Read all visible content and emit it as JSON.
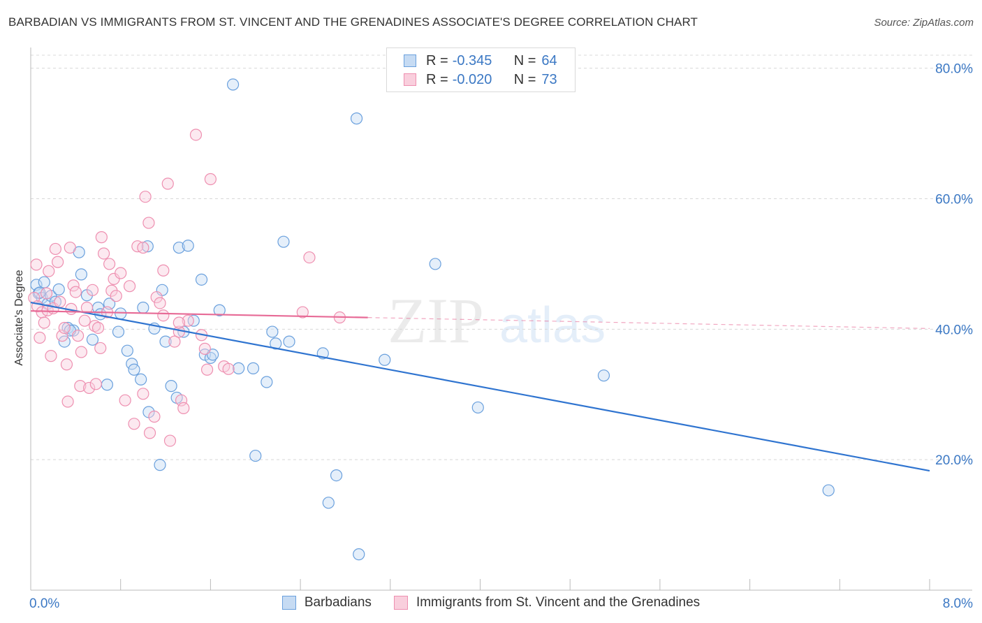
{
  "title": "BARBADIAN VS IMMIGRANTS FROM ST. VINCENT AND THE GRENADINES ASSOCIATE'S DEGREE CORRELATION CHART",
  "source": "Source: ZipAtlas.com",
  "watermark": {
    "zip": "ZIP",
    "atlas": "atlas"
  },
  "stats": [
    {
      "r_label": "R =",
      "r_value": "-0.345",
      "n_label": "N =",
      "n_value": "64",
      "color": "#6aa0dd",
      "fill": "#c6dbf3"
    },
    {
      "r_label": "R =",
      "r_value": "-0.020",
      "n_label": "N =",
      "n_value": "73",
      "color": "#ee8fb0",
      "fill": "#f9cfdd"
    }
  ],
  "legend": [
    {
      "label": "Barbadians",
      "color": "#6aa0dd",
      "fill": "#c6dbf3"
    },
    {
      "label": "Immigrants from St. Vincent and the Grenadines",
      "color": "#ee8fb0",
      "fill": "#f9cfdd"
    }
  ],
  "chart_data": {
    "type": "scatter",
    "title": "BARBADIAN VS IMMIGRANTS FROM ST. VINCENT AND THE GRENADINES ASSOCIATE'S DEGREE CORRELATION CHART",
    "ylabel": "Associate's Degree",
    "xlabel": "",
    "xlim": [
      0,
      8
    ],
    "ylim": [
      0,
      82
    ],
    "x_tick_labels": [
      "0.0%",
      "8.0%"
    ],
    "y_ticks": [
      20,
      40,
      60,
      80
    ],
    "y_tick_labels": [
      "20.0%",
      "40.0%",
      "60.0%",
      "80.0%"
    ],
    "grid": true,
    "legend_position": "bottom",
    "series": [
      {
        "name": "Barbadians",
        "color": "#6aa0dd",
        "fill": "#c6dbf3",
        "trend": {
          "x0": 0,
          "y0": 44.1,
          "x1": 8,
          "y1": 18.3,
          "solid_to": 8
        },
        "points": [
          [
            0.05,
            46.8
          ],
          [
            0.07,
            45.5
          ],
          [
            0.1,
            44.8
          ],
          [
            0.12,
            47.2
          ],
          [
            0.15,
            43.9
          ],
          [
            0.18,
            45.1
          ],
          [
            0.22,
            44.2
          ],
          [
            0.25,
            46.1
          ],
          [
            0.3,
            38.1
          ],
          [
            0.33,
            40.2
          ],
          [
            0.38,
            39.8
          ],
          [
            0.43,
            51.8
          ],
          [
            0.45,
            48.4
          ],
          [
            0.5,
            45.2
          ],
          [
            0.55,
            38.4
          ],
          [
            0.6,
            43.3
          ],
          [
            0.62,
            42.3
          ],
          [
            0.68,
            31.5
          ],
          [
            0.7,
            43.9
          ],
          [
            0.78,
            39.6
          ],
          [
            0.8,
            42.4
          ],
          [
            0.86,
            36.7
          ],
          [
            0.9,
            34.7
          ],
          [
            0.92,
            33.8
          ],
          [
            0.98,
            32.3
          ],
          [
            1.0,
            43.3
          ],
          [
            1.04,
            52.7
          ],
          [
            1.05,
            27.3
          ],
          [
            1.1,
            40.1
          ],
          [
            1.15,
            19.2
          ],
          [
            1.17,
            46.0
          ],
          [
            1.2,
            38.1
          ],
          [
            1.25,
            31.3
          ],
          [
            1.3,
            29.5
          ],
          [
            1.32,
            52.5
          ],
          [
            1.36,
            39.6
          ],
          [
            1.4,
            52.8
          ],
          [
            1.45,
            41.3
          ],
          [
            1.52,
            47.6
          ],
          [
            1.55,
            36.1
          ],
          [
            1.6,
            35.6
          ],
          [
            1.62,
            36.1
          ],
          [
            1.68,
            42.9
          ],
          [
            1.8,
            77.5
          ],
          [
            1.85,
            34.0
          ],
          [
            1.98,
            34.0
          ],
          [
            2.0,
            20.6
          ],
          [
            2.1,
            31.9
          ],
          [
            2.15,
            39.6
          ],
          [
            2.18,
            37.8
          ],
          [
            2.25,
            53.4
          ],
          [
            2.3,
            38.1
          ],
          [
            2.6,
            36.3
          ],
          [
            2.65,
            13.4
          ],
          [
            2.72,
            17.6
          ],
          [
            2.9,
            72.3
          ],
          [
            2.92,
            5.5
          ],
          [
            3.15,
            35.3
          ],
          [
            3.6,
            50.0
          ],
          [
            3.98,
            28.0
          ],
          [
            5.1,
            32.9
          ],
          [
            7.1,
            15.3
          ],
          [
            0.08,
            45.6
          ],
          [
            0.35,
            39.8
          ]
        ]
      },
      {
        "name": "Immigrants from St. Vincent and the Grenadines",
        "color": "#ee8fb0",
        "fill": "#f9cfdd",
        "trend": {
          "x0": 0,
          "y0": 42.8,
          "x1": 8,
          "y1": 40.1,
          "solid_to": 3.0
        },
        "points": [
          [
            0.03,
            44.8
          ],
          [
            0.05,
            49.9
          ],
          [
            0.06,
            43.5
          ],
          [
            0.08,
            38.7
          ],
          [
            0.1,
            42.6
          ],
          [
            0.12,
            41.0
          ],
          [
            0.14,
            45.5
          ],
          [
            0.15,
            42.9
          ],
          [
            0.16,
            48.9
          ],
          [
            0.18,
            35.9
          ],
          [
            0.2,
            43.2
          ],
          [
            0.22,
            52.3
          ],
          [
            0.24,
            50.3
          ],
          [
            0.26,
            44.2
          ],
          [
            0.28,
            39.0
          ],
          [
            0.3,
            40.2
          ],
          [
            0.32,
            34.6
          ],
          [
            0.33,
            28.9
          ],
          [
            0.35,
            52.5
          ],
          [
            0.38,
            46.7
          ],
          [
            0.4,
            45.7
          ],
          [
            0.42,
            39.0
          ],
          [
            0.44,
            31.3
          ],
          [
            0.45,
            36.5
          ],
          [
            0.48,
            41.3
          ],
          [
            0.5,
            43.3
          ],
          [
            0.52,
            31.0
          ],
          [
            0.55,
            46.0
          ],
          [
            0.57,
            40.5
          ],
          [
            0.58,
            31.6
          ],
          [
            0.6,
            40.2
          ],
          [
            0.62,
            37.1
          ],
          [
            0.63,
            54.1
          ],
          [
            0.65,
            51.6
          ],
          [
            0.68,
            42.6
          ],
          [
            0.7,
            50.0
          ],
          [
            0.72,
            45.9
          ],
          [
            0.74,
            47.7
          ],
          [
            0.76,
            45.1
          ],
          [
            0.8,
            48.6
          ],
          [
            0.84,
            29.1
          ],
          [
            0.88,
            46.6
          ],
          [
            0.92,
            25.5
          ],
          [
            0.95,
            52.7
          ],
          [
            1.0,
            30.1
          ],
          [
            1.02,
            60.3
          ],
          [
            1.05,
            56.3
          ],
          [
            1.06,
            24.1
          ],
          [
            1.1,
            26.6
          ],
          [
            1.12,
            44.9
          ],
          [
            1.15,
            44.0
          ],
          [
            1.18,
            42.1
          ],
          [
            1.22,
            62.3
          ],
          [
            1.24,
            22.9
          ],
          [
            1.28,
            38.1
          ],
          [
            1.32,
            39.6
          ],
          [
            1.34,
            29.1
          ],
          [
            1.36,
            27.9
          ],
          [
            1.4,
            41.3
          ],
          [
            1.47,
            69.8
          ],
          [
            1.52,
            39.1
          ],
          [
            1.55,
            37.0
          ],
          [
            1.57,
            33.8
          ],
          [
            1.6,
            63.0
          ],
          [
            1.72,
            34.3
          ],
          [
            1.76,
            33.9
          ],
          [
            2.48,
            51.0
          ],
          [
            2.42,
            42.6
          ],
          [
            2.75,
            41.8
          ],
          [
            1.32,
            41.0
          ],
          [
            1.18,
            49.0
          ],
          [
            0.36,
            43.1
          ],
          [
            1.0,
            52.5
          ]
        ]
      }
    ]
  }
}
